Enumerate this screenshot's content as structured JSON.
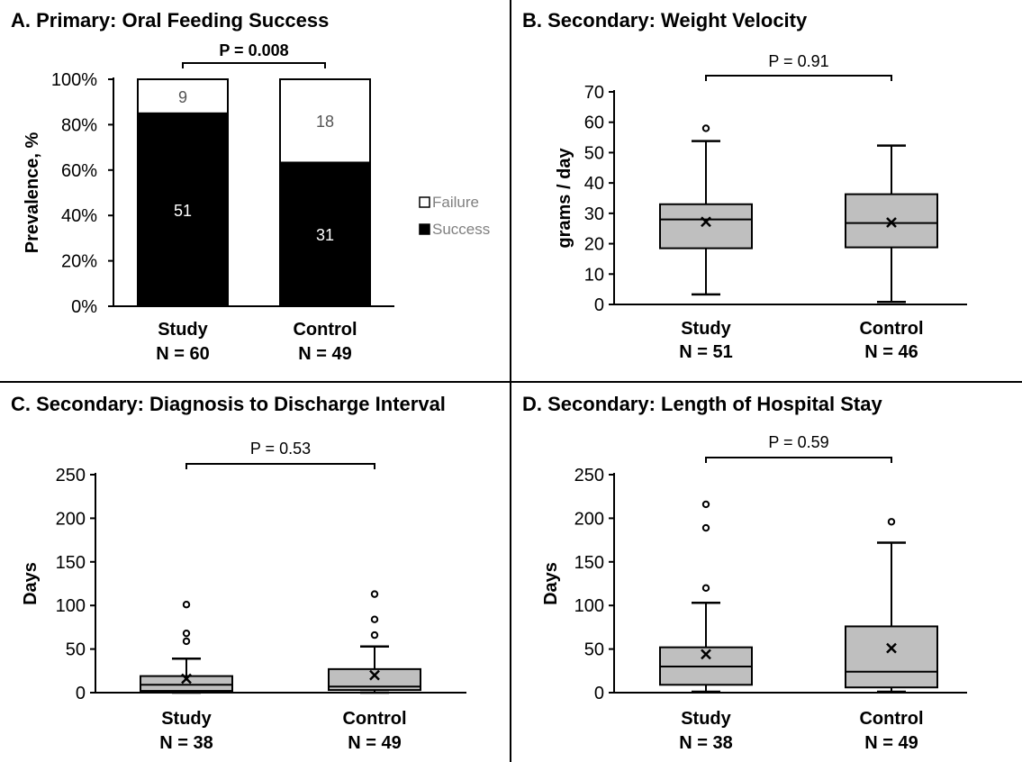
{
  "colors": {
    "bar_success": "#000000",
    "bar_failure": "#ffffff",
    "box_fill": "#bfbfbf",
    "axis": "#000000",
    "failure_label": "#555555",
    "legend_text": "#808080"
  },
  "chart_data": [
    {
      "panel": "A",
      "type": "bar",
      "title": "A. Primary: Oral Feeding Success",
      "ylabel": "Prevalence, %",
      "ylim": [
        0,
        100
      ],
      "ytick_labels": [
        "0%",
        "20%",
        "40%",
        "60%",
        "80%",
        "100%"
      ],
      "yticks": [
        0,
        20,
        40,
        60,
        80,
        100
      ],
      "categories": [
        "Study",
        "Control"
      ],
      "sample_sizes": [
        "N = 60",
        "N = 49"
      ],
      "stacked": true,
      "series": [
        {
          "name": "Success",
          "values": [
            85,
            63.3
          ],
          "counts": [
            "51",
            "31"
          ]
        },
        {
          "name": "Failure",
          "values": [
            15,
            36.7
          ],
          "counts": [
            "9",
            "18"
          ]
        }
      ],
      "legend": [
        "Failure",
        "Success"
      ],
      "legend_position": "right",
      "p_value": "P = 0.008"
    },
    {
      "panel": "B",
      "type": "box",
      "title": "B. Secondary: Weight Velocity",
      "ylabel": "grams / day",
      "ylim": [
        0,
        70
      ],
      "yticks": [
        0,
        10,
        20,
        30,
        40,
        50,
        60,
        70
      ],
      "ytick_labels": [
        "0",
        "10",
        "20",
        "30",
        "40",
        "50",
        "60",
        "70"
      ],
      "categories": [
        "Study",
        "Control"
      ],
      "sample_sizes": [
        "N = 51",
        "N = 46"
      ],
      "boxes": [
        {
          "min": 3.3,
          "q1": 18.5,
          "median": 28,
          "q3": 33,
          "max": 53.8,
          "mean": 27.2,
          "outliers": [
            58
          ]
        },
        {
          "min": 0.8,
          "q1": 18.8,
          "median": 26.8,
          "q3": 36.3,
          "max": 52.3,
          "mean": 27,
          "outliers": []
        }
      ],
      "p_value": "P = 0.91"
    },
    {
      "panel": "C",
      "type": "box",
      "title": "C. Secondary: Diagnosis to Discharge Interval",
      "ylabel": "Days",
      "ylim": [
        0,
        250
      ],
      "yticks": [
        0,
        50,
        100,
        150,
        200,
        250
      ],
      "ytick_labels": [
        "0",
        "50",
        "100",
        "150",
        "200",
        "250"
      ],
      "categories": [
        "Study",
        "Control"
      ],
      "sample_sizes": [
        "N = 38",
        "N = 49"
      ],
      "boxes": [
        {
          "min": 0,
          "q1": 2,
          "median": 9,
          "q3": 19,
          "max": 39,
          "mean": 16,
          "outliers": [
            59,
            68,
            101
          ]
        },
        {
          "min": 0,
          "q1": 3,
          "median": 7,
          "q3": 27,
          "max": 53,
          "mean": 20,
          "outliers": [
            66,
            84,
            113
          ]
        }
      ],
      "p_value": "P = 0.53"
    },
    {
      "panel": "D",
      "type": "box",
      "title": "D. Secondary: Length of Hospital Stay",
      "ylabel": "Days",
      "ylim": [
        0,
        250
      ],
      "yticks": [
        0,
        50,
        100,
        150,
        200,
        250
      ],
      "ytick_labels": [
        "0",
        "50",
        "100",
        "150",
        "200",
        "250"
      ],
      "categories": [
        "Study",
        "Control"
      ],
      "sample_sizes": [
        "N = 38",
        "N = 49"
      ],
      "boxes": [
        {
          "min": 1,
          "q1": 9,
          "median": 30,
          "q3": 52,
          "max": 103,
          "mean": 44,
          "outliers": [
            120,
            189,
            216
          ]
        },
        {
          "min": 1,
          "q1": 6,
          "median": 24,
          "q3": 76,
          "max": 172,
          "mean": 51,
          "outliers": [
            196
          ]
        }
      ],
      "p_value": "P = 0.59"
    }
  ]
}
